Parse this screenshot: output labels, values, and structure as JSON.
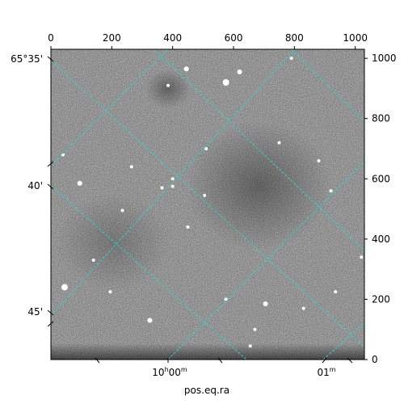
{
  "figure": {
    "xlabel": "pos.eq.ra"
  },
  "pixel_axes": {
    "top_ticks": [
      "0",
      "200",
      "400",
      "600",
      "800",
      "1000"
    ],
    "right_ticks": [
      "0",
      "200",
      "400",
      "600",
      "800",
      "1000"
    ],
    "range": [
      0,
      1030
    ]
  },
  "world_axes": {
    "dec_ticks": [
      "65°35'",
      "40'",
      "45'"
    ],
    "ra_ticks": [
      {
        "base": "10",
        "sup1": "h",
        "mid": "00",
        "sup2": "m"
      },
      {
        "base": "01",
        "sup1": "m",
        "mid": "",
        "sup2": ""
      }
    ]
  },
  "colors": {
    "grid": "#2fd3cf",
    "frame": "#000000",
    "stars": "#ffffff"
  },
  "stars": [
    [
      445,
      965,
      3
    ],
    [
      620,
      955,
      3
    ],
    [
      575,
      920,
      4
    ],
    [
      385,
      910,
      2
    ],
    [
      790,
      1000,
      2
    ],
    [
      265,
      640,
      2
    ],
    [
      510,
      700,
      2
    ],
    [
      750,
      720,
      2
    ],
    [
      95,
      585,
      3
    ],
    [
      400,
      575,
      2
    ],
    [
      365,
      570,
      2
    ],
    [
      505,
      545,
      2
    ],
    [
      920,
      560,
      2
    ],
    [
      880,
      660,
      2
    ],
    [
      40,
      680,
      2
    ],
    [
      45,
      240,
      4
    ],
    [
      195,
      225,
      2
    ],
    [
      325,
      130,
      3
    ],
    [
      705,
      185,
      3
    ],
    [
      830,
      170,
      2
    ],
    [
      670,
      100,
      2
    ],
    [
      655,
      45,
      2
    ],
    [
      575,
      200,
      2
    ],
    [
      935,
      225,
      2
    ],
    [
      1020,
      340,
      2
    ],
    [
      450,
      440,
      2
    ],
    [
      400,
      600,
      2
    ],
    [
      235,
      495,
      2
    ],
    [
      140,
      330,
      2
    ]
  ]
}
